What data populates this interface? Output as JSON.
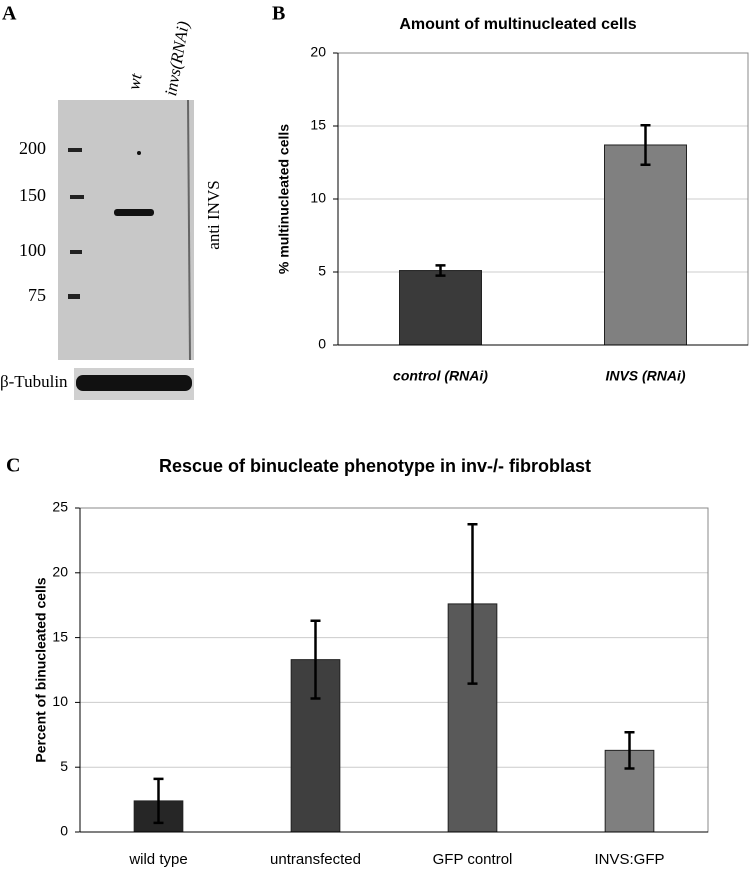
{
  "panel_a": {
    "panel": "A",
    "lanes": [
      "wt",
      "invs(RNAi)"
    ],
    "markers": [
      200,
      150,
      100,
      75
    ],
    "antibody": "anti INVS",
    "loading_control": "β-Tubulin"
  },
  "chart_data": [
    {
      "type": "bar",
      "panel": "B",
      "title": "Amount of multinucleated cells",
      "y_label": "% multinucleated cells",
      "categories": [
        "control (RNAi)",
        "INVS (RNAi)"
      ],
      "values": [
        5.1,
        13.7
      ],
      "errors": [
        0.35,
        1.35
      ],
      "colors": [
        "#3a3a3a",
        "#808080"
      ],
      "ylim": [
        0,
        20
      ],
      "yticks": [
        0,
        5,
        10,
        15,
        20
      ],
      "grid": true
    },
    {
      "type": "bar",
      "panel": "C",
      "title": "Rescue of binucleate phenotype in inv-/- fibroblast",
      "y_label": "Percent of binucleated cells",
      "categories": [
        "wild type",
        "untransfected",
        "GFP control",
        "INVS:GFP"
      ],
      "values": [
        2.4,
        13.3,
        17.6,
        6.3
      ],
      "errors": [
        1.7,
        3.0,
        6.15,
        1.4
      ],
      "colors": [
        "#262626",
        "#3f3f3f",
        "#595959",
        "#7f7f7f"
      ],
      "ylim": [
        0,
        25
      ],
      "yticks": [
        0,
        5,
        10,
        15,
        20,
        25
      ],
      "grid": true
    }
  ]
}
